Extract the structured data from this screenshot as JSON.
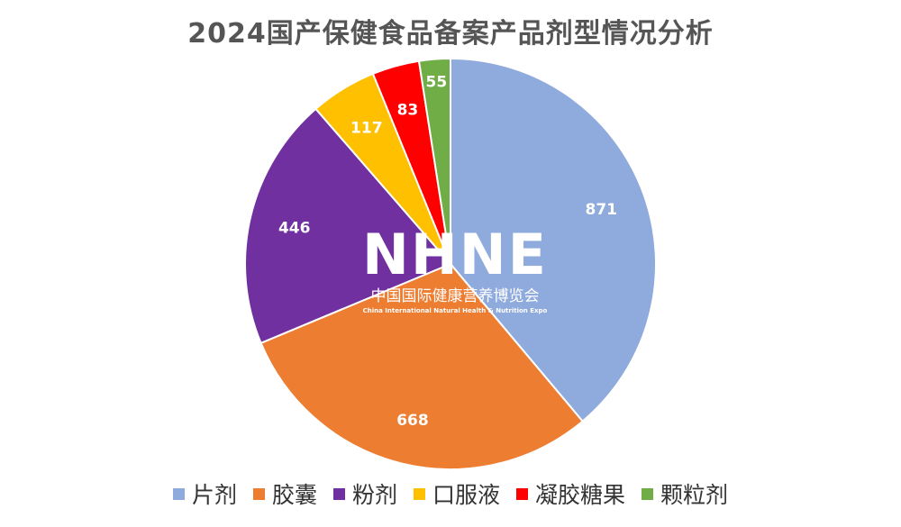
{
  "chart_data": {
    "type": "pie",
    "title": "2024国产保健食品备案产品剂型情况分析",
    "categories": [
      "片剂",
      "胶囊",
      "粉剂",
      "口服液",
      "凝胶糖果",
      "颗粒剂"
    ],
    "values": [
      871,
      668,
      446,
      117,
      83,
      55
    ],
    "colors": [
      "#8faadc",
      "#ed7d31",
      "#7030a0",
      "#ffc000",
      "#ff0000",
      "#70ad47"
    ],
    "legend_position": "bottom",
    "start_angle": "top",
    "direction": "clockwise"
  },
  "watermark": {
    "logo": "NHNE",
    "name_cn": "中国国际健康营养博览会",
    "name_en": "China International Natural Health & Nutrition Expo"
  }
}
